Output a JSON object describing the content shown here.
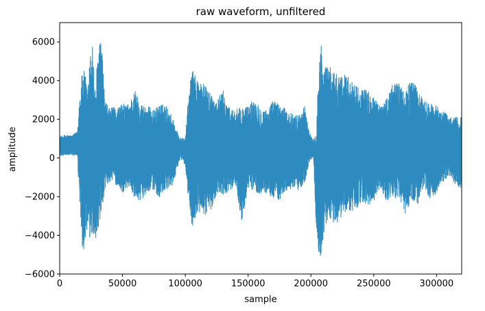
{
  "chart_data": {
    "type": "line",
    "title": "raw waveform, unfiltered",
    "xlabel": "sample",
    "ylabel": "amplitude",
    "xlim": [
      0,
      320000
    ],
    "ylim": [
      -6000,
      7000
    ],
    "grid": false,
    "legend": "none",
    "line_color": "#2e8bc0",
    "x_ticks": [
      0,
      50000,
      100000,
      150000,
      200000,
      250000,
      300000
    ],
    "x_tick_labels": [
      "0",
      "50000",
      "100000",
      "150000",
      "200000",
      "250000",
      "300000"
    ],
    "y_ticks": [
      -6000,
      -4000,
      -2000,
      0,
      2000,
      4000,
      6000
    ],
    "y_tick_labels": [
      "−6000",
      "−4000",
      "−2000",
      "0",
      "2000",
      "4000",
      "6000"
    ],
    "series": [
      {
        "envelope": {
          "x": [
            0,
            5000,
            10000,
            14000,
            16000,
            18000,
            20000,
            22000,
            24000,
            26000,
            28000,
            30000,
            32000,
            34000,
            36000,
            38000,
            40000,
            45000,
            50000,
            55000,
            60000,
            65000,
            70000,
            75000,
            80000,
            85000,
            90000,
            95000,
            98000,
            100000,
            102000,
            105000,
            110000,
            115000,
            120000,
            125000,
            130000,
            135000,
            140000,
            145000,
            150000,
            155000,
            160000,
            165000,
            170000,
            175000,
            180000,
            185000,
            190000,
            195000,
            198000,
            200000,
            202000,
            204000,
            206000,
            208000,
            210000,
            212000,
            215000,
            220000,
            225000,
            230000,
            235000,
            240000,
            245000,
            250000,
            255000,
            260000,
            265000,
            270000,
            275000,
            280000,
            285000,
            290000,
            295000,
            300000,
            305000,
            310000,
            315000,
            320000
          ],
          "max": [
            1100,
            1200,
            1150,
            1400,
            3300,
            4500,
            4500,
            3500,
            5000,
            6400,
            3500,
            5000,
            6450,
            5200,
            3000,
            2700,
            2600,
            2600,
            2800,
            2800,
            3500,
            2800,
            2700,
            2500,
            2800,
            2700,
            2100,
            1100,
            1000,
            1000,
            2800,
            4600,
            4100,
            3800,
            3400,
            3000,
            3500,
            2600,
            2500,
            2600,
            2700,
            3100,
            2600,
            2500,
            3000,
            2800,
            2500,
            2300,
            2200,
            2700,
            1600,
            1100,
            1000,
            1200,
            5000,
            6000,
            4500,
            4800,
            4700,
            4400,
            4300,
            4300,
            3800,
            3600,
            3500,
            3200,
            2700,
            3100,
            3800,
            4000,
            3300,
            4200,
            3500,
            3000,
            2800,
            2700,
            2500,
            2100,
            2200,
            2100
          ],
          "min": [
            100,
            150,
            150,
            50,
            -2500,
            -4700,
            -4800,
            -3900,
            -4300,
            -4100,
            -4200,
            -4000,
            -3600,
            -3000,
            -1600,
            -1400,
            -1200,
            -1400,
            -1800,
            -1500,
            -2100,
            -2200,
            -1700,
            -1700,
            -2100,
            -1700,
            -1400,
            -200,
            -100,
            -500,
            -1800,
            -3600,
            -2900,
            -3000,
            -2800,
            -1800,
            -1900,
            -1700,
            -1400,
            -3300,
            -1600,
            -1700,
            -1900,
            -1800,
            -2100,
            -2200,
            -1700,
            -1600,
            -1700,
            -1300,
            -400,
            -100,
            100,
            -3300,
            -5000,
            -5400,
            -4000,
            -3400,
            -3200,
            -3500,
            -3000,
            -2700,
            -2800,
            -2300,
            -2400,
            -2400,
            -1500,
            -2300,
            -2000,
            -2200,
            -2900,
            -2200,
            -2400,
            -1500,
            -2200,
            -1800,
            -1300,
            -900,
            -1400,
            -1600
          ]
        }
      }
    ]
  }
}
